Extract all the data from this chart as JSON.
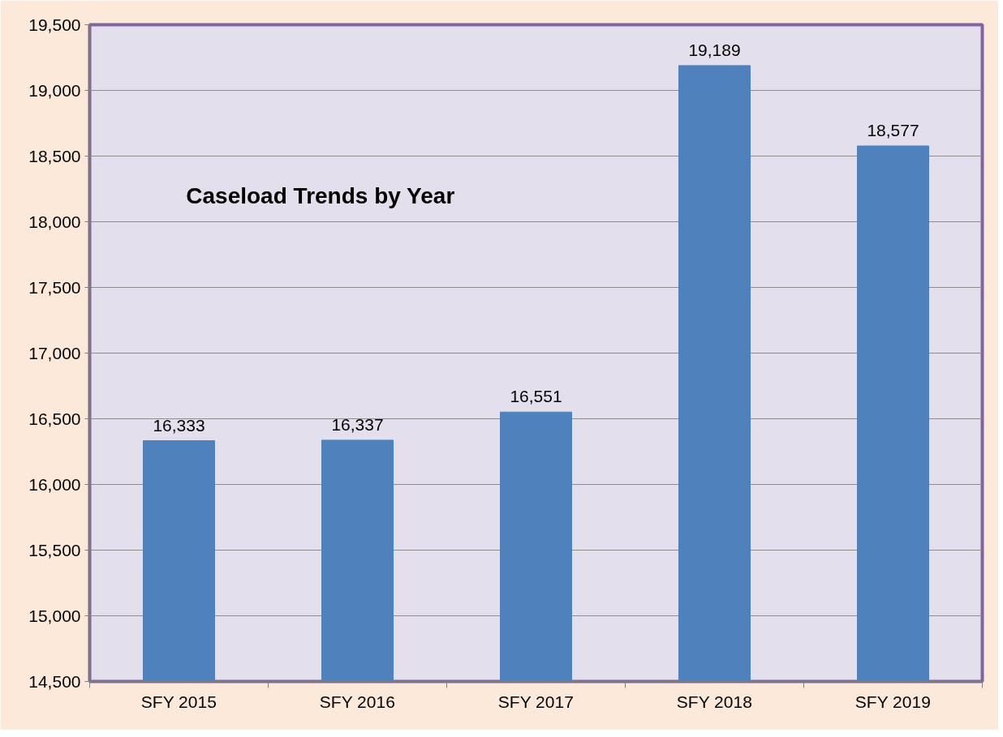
{
  "chart_data": {
    "type": "bar",
    "title": "Caseload Trends by Year",
    "categories": [
      "SFY 2015",
      "SFY 2016",
      "SFY 2017",
      "SFY 2018",
      "SFY 2019"
    ],
    "values": [
      16333,
      16337,
      16551,
      19189,
      18577
    ],
    "color": "#4f81bd",
    "ylim": [
      14500,
      19500
    ],
    "yticks": [
      {
        "value": 14500,
        "label": "14,500"
      },
      {
        "value": 15000,
        "label": "15,000"
      },
      {
        "value": 15500,
        "label": "15,500"
      },
      {
        "value": 16000,
        "label": "16,000"
      },
      {
        "value": 16500,
        "label": "16,500"
      },
      {
        "value": 17000,
        "label": "17,000"
      },
      {
        "value": 17500,
        "label": "17,500"
      },
      {
        "value": 18000,
        "label": "18,000"
      },
      {
        "value": 18500,
        "label": "18,500"
      },
      {
        "value": 19000,
        "label": "19,000"
      },
      {
        "value": 19500,
        "label": "19,500"
      }
    ],
    "value_labels": [
      "16,333",
      "16,337",
      "16,551",
      "19,189",
      "18,577"
    ],
    "grid": "y"
  }
}
